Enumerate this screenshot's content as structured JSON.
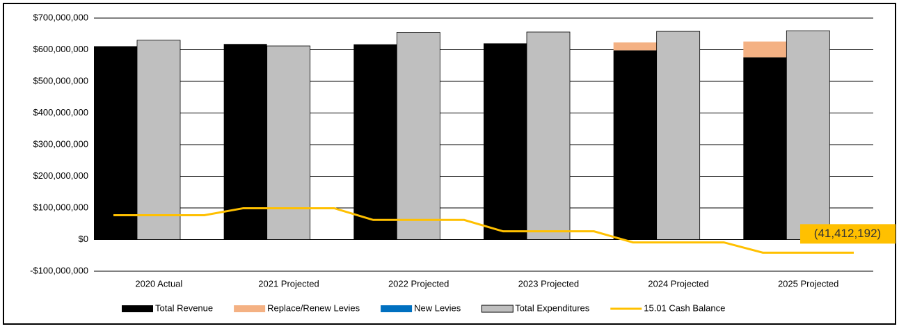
{
  "chart_data": {
    "type": "bar",
    "categories": [
      "2020 Actual",
      "2021 Projected",
      "2022 Projected",
      "2023 Projected",
      "2024 Projected",
      "2025 Projected"
    ],
    "series": [
      {
        "name": "Total Revenue",
        "type": "bar",
        "stack": "rev",
        "color": "#000000",
        "values": [
          611000000,
          618000000,
          617000000,
          620000000,
          598000000,
          576000000
        ]
      },
      {
        "name": "Replace/Renew Levies",
        "type": "bar",
        "stack": "rev",
        "color": "#f4b183",
        "values": [
          0,
          0,
          0,
          0,
          25000000,
          50000000
        ]
      },
      {
        "name": "New Levies",
        "type": "bar",
        "stack": "rev",
        "color": "#0070c0",
        "values": [
          0,
          0,
          0,
          0,
          0,
          0
        ]
      },
      {
        "name": "Total Expenditures",
        "type": "bar",
        "stack": "exp",
        "color": "#bfbfbf",
        "values": [
          630000000,
          612000000,
          655000000,
          656000000,
          658000000,
          660000000
        ]
      },
      {
        "name": "15.01 Cash Balance",
        "type": "line",
        "color": "#ffc000",
        "values": [
          77000000,
          99000000,
          62000000,
          26000000,
          -9000000,
          -41412192
        ],
        "value_labels": [
          null,
          null,
          null,
          null,
          null,
          "(41,412,192)"
        ]
      }
    ],
    "ylim": [
      -100000000,
      700000000
    ],
    "yticks": [
      {
        "value": -100000000,
        "label": "-$100,000,000"
      },
      {
        "value": 0,
        "label": "$0"
      },
      {
        "value": 100000000,
        "label": "$100,000,000"
      },
      {
        "value": 200000000,
        "label": "$200,000,000"
      },
      {
        "value": 300000000,
        "label": "$300,000,000"
      },
      {
        "value": 400000000,
        "label": "$400,000,000"
      },
      {
        "value": 500000000,
        "label": "$500,000,000"
      },
      {
        "value": 600000000,
        "label": "$600,000,000"
      },
      {
        "value": 700000000,
        "label": "$700,000,000"
      }
    ],
    "grid": true,
    "legend": "bottom"
  }
}
